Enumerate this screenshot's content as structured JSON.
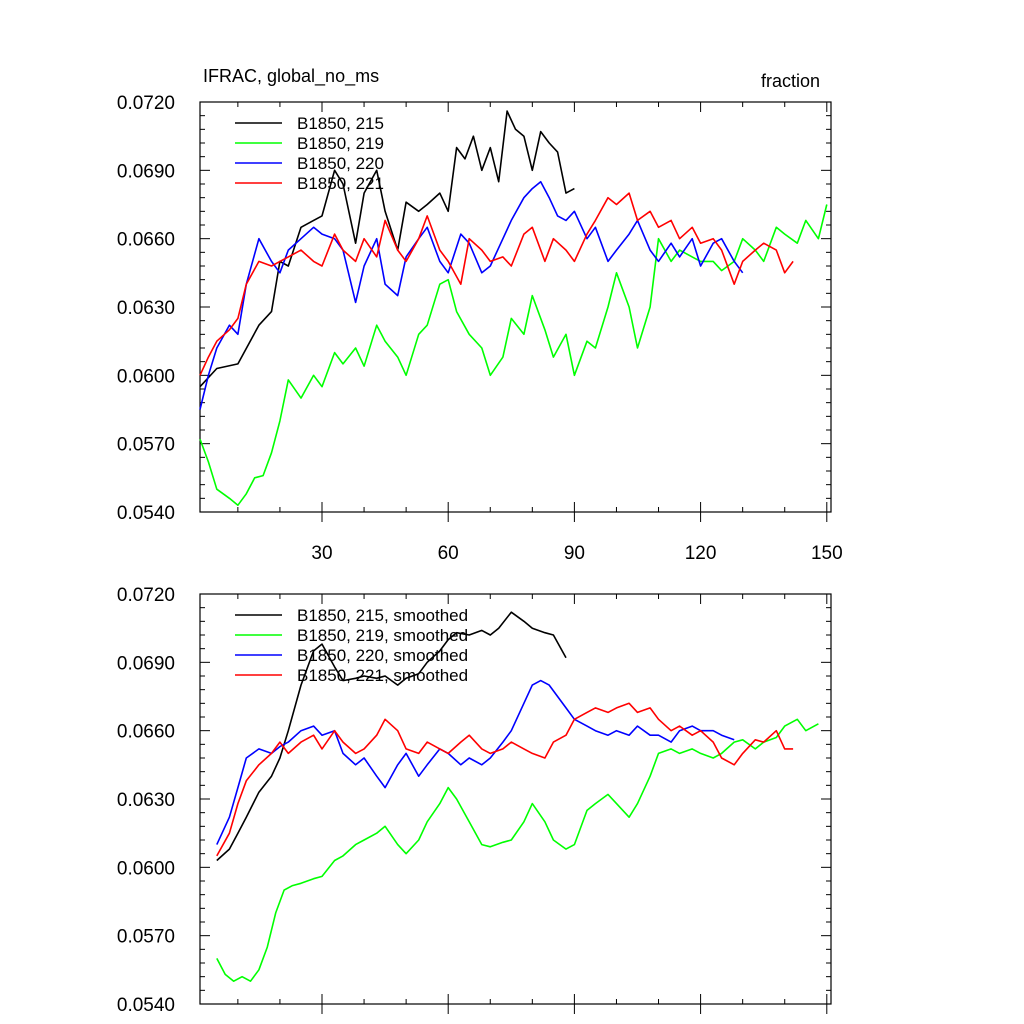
{
  "chart_data": [
    {
      "type": "line",
      "title": "IFRAC, global_no_ms",
      "units": "fraction",
      "xlabel": "",
      "ylabel": "",
      "xlim": [
        1,
        151
      ],
      "ylim": [
        0.054,
        0.072
      ],
      "xticks": [
        "30",
        "60",
        "90",
        "120",
        "150"
      ],
      "yticks": [
        "0.0540",
        "0.0570",
        "0.0600",
        "0.0630",
        "0.0660",
        "0.0690",
        "0.0720"
      ],
      "legend": "top-left",
      "series": [
        {
          "name": "B1850, 215",
          "color": "#000000",
          "x": [
            1,
            5,
            10,
            15,
            18,
            20,
            22,
            25,
            28,
            30,
            33,
            35,
            38,
            40,
            43,
            45,
            48,
            50,
            53,
            55,
            58,
            60,
            62,
            64,
            66,
            68,
            70,
            72,
            74,
            76,
            78,
            80,
            82,
            84,
            86,
            88,
            90
          ],
          "y": [
            0.0595,
            0.0603,
            0.0605,
            0.0622,
            0.0628,
            0.065,
            0.0648,
            0.0665,
            0.0668,
            0.067,
            0.069,
            0.0684,
            0.0658,
            0.068,
            0.069,
            0.0672,
            0.0655,
            0.0676,
            0.0672,
            0.0675,
            0.068,
            0.0672,
            0.07,
            0.0695,
            0.0705,
            0.069,
            0.07,
            0.0685,
            0.0716,
            0.0708,
            0.0705,
            0.069,
            0.0707,
            0.0702,
            0.0698,
            0.068,
            0.0682
          ]
        },
        {
          "name": "B1850, 219",
          "color": "#00ff00",
          "x": [
            1,
            3,
            5,
            8,
            10,
            12,
            14,
            16,
            18,
            20,
            22,
            25,
            28,
            30,
            33,
            35,
            38,
            40,
            43,
            45,
            48,
            50,
            53,
            55,
            58,
            60,
            62,
            65,
            68,
            70,
            73,
            75,
            78,
            80,
            83,
            85,
            88,
            90,
            93,
            95,
            98,
            100,
            103,
            105,
            108,
            110,
            113,
            115,
            118,
            120,
            123,
            125,
            128,
            130,
            133,
            135,
            138,
            140,
            143,
            145,
            148,
            150
          ],
          "y": [
            0.0572,
            0.0562,
            0.055,
            0.0546,
            0.0543,
            0.0548,
            0.0555,
            0.0556,
            0.0566,
            0.058,
            0.0598,
            0.059,
            0.06,
            0.0595,
            0.061,
            0.0605,
            0.0612,
            0.0604,
            0.0622,
            0.0615,
            0.0608,
            0.06,
            0.0618,
            0.0622,
            0.064,
            0.0642,
            0.0628,
            0.0618,
            0.0612,
            0.06,
            0.0608,
            0.0625,
            0.0618,
            0.0635,
            0.062,
            0.0608,
            0.0618,
            0.06,
            0.0615,
            0.0612,
            0.063,
            0.0645,
            0.063,
            0.0612,
            0.063,
            0.066,
            0.065,
            0.0655,
            0.0652,
            0.065,
            0.065,
            0.0646,
            0.065,
            0.066,
            0.0655,
            0.065,
            0.0665,
            0.0662,
            0.0658,
            0.0668,
            0.066,
            0.0675
          ]
        },
        {
          "name": "B1850, 220",
          "color": "#0000ff",
          "x": [
            1,
            3,
            5,
            8,
            10,
            12,
            15,
            18,
            20,
            22,
            25,
            28,
            30,
            33,
            35,
            38,
            40,
            43,
            45,
            48,
            50,
            53,
            55,
            58,
            60,
            63,
            65,
            68,
            70,
            73,
            75,
            78,
            80,
            82,
            84,
            86,
            88,
            90,
            93,
            95,
            98,
            100,
            103,
            105,
            108,
            110,
            113,
            115,
            118,
            120,
            123,
            125,
            128,
            130
          ],
          "y": [
            0.0585,
            0.06,
            0.0612,
            0.0622,
            0.0618,
            0.064,
            0.066,
            0.065,
            0.0645,
            0.0655,
            0.066,
            0.0665,
            0.0662,
            0.066,
            0.0655,
            0.0632,
            0.0648,
            0.066,
            0.064,
            0.0635,
            0.0652,
            0.066,
            0.0665,
            0.065,
            0.0645,
            0.0662,
            0.0658,
            0.0645,
            0.0648,
            0.066,
            0.0668,
            0.0678,
            0.0682,
            0.0685,
            0.0678,
            0.067,
            0.0668,
            0.0672,
            0.066,
            0.0665,
            0.065,
            0.0655,
            0.0662,
            0.0668,
            0.0655,
            0.065,
            0.0658,
            0.0652,
            0.066,
            0.0648,
            0.0658,
            0.066,
            0.065,
            0.0645
          ]
        },
        {
          "name": "B1850, 221",
          "color": "#ff0000",
          "x": [
            1,
            3,
            5,
            8,
            10,
            12,
            15,
            18,
            20,
            22,
            25,
            28,
            30,
            33,
            35,
            38,
            40,
            43,
            45,
            48,
            50,
            53,
            55,
            58,
            60,
            63,
            65,
            68,
            70,
            73,
            75,
            78,
            80,
            83,
            85,
            88,
            90,
            93,
            95,
            98,
            100,
            103,
            105,
            108,
            110,
            113,
            115,
            118,
            120,
            123,
            125,
            128,
            130,
            133,
            135,
            138,
            140,
            142
          ],
          "y": [
            0.06,
            0.0608,
            0.0615,
            0.062,
            0.0625,
            0.064,
            0.065,
            0.0648,
            0.065,
            0.0652,
            0.0655,
            0.065,
            0.0648,
            0.0662,
            0.0655,
            0.065,
            0.066,
            0.0652,
            0.0668,
            0.0655,
            0.065,
            0.066,
            0.067,
            0.0655,
            0.065,
            0.064,
            0.066,
            0.0655,
            0.065,
            0.0652,
            0.0648,
            0.0662,
            0.0665,
            0.065,
            0.066,
            0.0655,
            0.065,
            0.0662,
            0.0668,
            0.0678,
            0.0675,
            0.068,
            0.0668,
            0.0672,
            0.0665,
            0.0668,
            0.066,
            0.0665,
            0.0658,
            0.066,
            0.0655,
            0.064,
            0.065,
            0.0655,
            0.0658,
            0.0655,
            0.0645,
            0.065
          ]
        }
      ]
    },
    {
      "type": "line",
      "title": "",
      "units": "",
      "xlabel": "",
      "ylabel": "",
      "xlim": [
        1,
        151
      ],
      "ylim": [
        0.054,
        0.072
      ],
      "xticks": [],
      "yticks": [
        "0.0540",
        "0.0570",
        "0.0600",
        "0.0630",
        "0.0660",
        "0.0690",
        "0.0720"
      ],
      "legend": "top-left",
      "series": [
        {
          "name": "B1850, 215, smoothed",
          "color": "#000000",
          "x": [
            5,
            8,
            10,
            12,
            15,
            18,
            20,
            22,
            25,
            28,
            30,
            33,
            35,
            38,
            40,
            43,
            45,
            48,
            50,
            53,
            55,
            58,
            60,
            62,
            65,
            68,
            70,
            72,
            75,
            78,
            80,
            83,
            85,
            88
          ],
          "y": [
            0.0603,
            0.0608,
            0.0615,
            0.0622,
            0.0633,
            0.064,
            0.0648,
            0.066,
            0.068,
            0.0695,
            0.0698,
            0.0688,
            0.0682,
            0.0683,
            0.0684,
            0.0683,
            0.0684,
            0.068,
            0.0683,
            0.0685,
            0.069,
            0.0695,
            0.07,
            0.0703,
            0.0702,
            0.0704,
            0.0702,
            0.0705,
            0.0712,
            0.0708,
            0.0705,
            0.0703,
            0.0702,
            0.0692
          ]
        },
        {
          "name": "B1850, 219, smoothed",
          "color": "#00ff00",
          "x": [
            5,
            7,
            9,
            11,
            13,
            15,
            17,
            19,
            21,
            23,
            25,
            28,
            30,
            33,
            35,
            38,
            40,
            43,
            45,
            48,
            50,
            53,
            55,
            58,
            60,
            62,
            65,
            68,
            70,
            73,
            75,
            78,
            80,
            83,
            85,
            88,
            90,
            93,
            95,
            98,
            100,
            103,
            105,
            108,
            110,
            113,
            115,
            118,
            120,
            123,
            125,
            128,
            130,
            133,
            135,
            138,
            140,
            143,
            145,
            148
          ],
          "y": [
            0.056,
            0.0553,
            0.055,
            0.0552,
            0.055,
            0.0555,
            0.0565,
            0.058,
            0.059,
            0.0592,
            0.0593,
            0.0595,
            0.0596,
            0.0603,
            0.0605,
            0.061,
            0.0612,
            0.0615,
            0.0618,
            0.061,
            0.0606,
            0.0612,
            0.062,
            0.0628,
            0.0635,
            0.063,
            0.062,
            0.061,
            0.0609,
            0.0611,
            0.0612,
            0.062,
            0.0628,
            0.062,
            0.0612,
            0.0608,
            0.061,
            0.0625,
            0.0628,
            0.0632,
            0.0628,
            0.0622,
            0.0628,
            0.064,
            0.065,
            0.0652,
            0.065,
            0.0652,
            0.065,
            0.0648,
            0.065,
            0.0655,
            0.0656,
            0.0652,
            0.0655,
            0.0657,
            0.0662,
            0.0665,
            0.066,
            0.0663
          ]
        },
        {
          "name": "B1850, 220, smoothed",
          "color": "#0000ff",
          "x": [
            5,
            8,
            10,
            12,
            15,
            18,
            20,
            22,
            25,
            28,
            30,
            33,
            35,
            38,
            40,
            43,
            45,
            48,
            50,
            53,
            55,
            58,
            60,
            63,
            65,
            68,
            70,
            73,
            75,
            78,
            80,
            82,
            84,
            86,
            88,
            90,
            93,
            95,
            98,
            100,
            103,
            105,
            108,
            110,
            113,
            115,
            118,
            120,
            123,
            125,
            128
          ],
          "y": [
            0.061,
            0.0622,
            0.0635,
            0.0648,
            0.0652,
            0.065,
            0.0653,
            0.0655,
            0.066,
            0.0662,
            0.0658,
            0.066,
            0.065,
            0.0645,
            0.0648,
            0.064,
            0.0635,
            0.0645,
            0.065,
            0.064,
            0.0645,
            0.0652,
            0.065,
            0.0645,
            0.0648,
            0.0645,
            0.0648,
            0.0655,
            0.066,
            0.0672,
            0.068,
            0.0682,
            0.068,
            0.0675,
            0.067,
            0.0665,
            0.0662,
            0.066,
            0.0658,
            0.066,
            0.0658,
            0.0662,
            0.0658,
            0.0658,
            0.0655,
            0.066,
            0.0662,
            0.066,
            0.066,
            0.0658,
            0.0656
          ]
        },
        {
          "name": "B1850, 221, smoothed",
          "color": "#ff0000",
          "x": [
            5,
            8,
            10,
            12,
            15,
            18,
            20,
            22,
            25,
            28,
            30,
            33,
            35,
            38,
            40,
            43,
            45,
            48,
            50,
            53,
            55,
            58,
            60,
            63,
            65,
            68,
            70,
            73,
            75,
            78,
            80,
            83,
            85,
            88,
            90,
            93,
            95,
            98,
            100,
            103,
            105,
            108,
            110,
            113,
            115,
            118,
            120,
            123,
            125,
            128,
            130,
            133,
            135,
            138,
            140,
            142
          ],
          "y": [
            0.0605,
            0.0615,
            0.0628,
            0.0638,
            0.0645,
            0.065,
            0.0655,
            0.065,
            0.0655,
            0.0658,
            0.0652,
            0.066,
            0.0655,
            0.065,
            0.0652,
            0.0658,
            0.0665,
            0.066,
            0.0652,
            0.065,
            0.0655,
            0.0652,
            0.065,
            0.0655,
            0.0658,
            0.0652,
            0.065,
            0.0652,
            0.0655,
            0.0652,
            0.065,
            0.0648,
            0.0655,
            0.0658,
            0.0665,
            0.0668,
            0.067,
            0.0668,
            0.067,
            0.0672,
            0.0668,
            0.067,
            0.0665,
            0.066,
            0.0662,
            0.0658,
            0.066,
            0.0655,
            0.0648,
            0.0645,
            0.065,
            0.0656,
            0.0655,
            0.066,
            0.0652,
            0.0652
          ]
        }
      ]
    }
  ]
}
